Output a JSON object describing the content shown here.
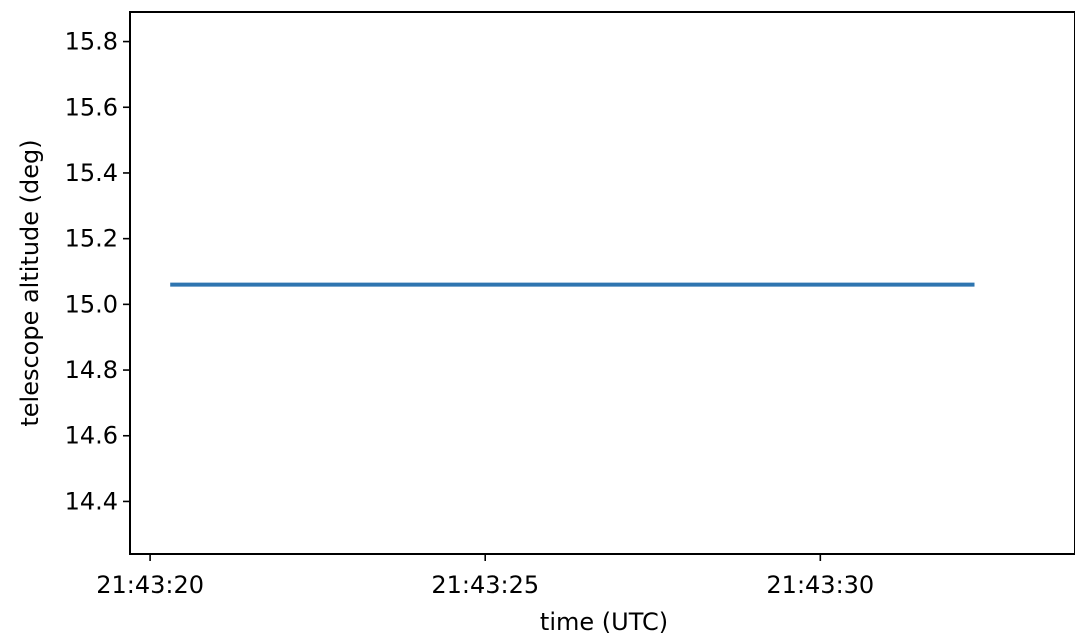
{
  "chart_data": {
    "type": "line",
    "title": "",
    "xlabel": "time (UTC)",
    "ylabel": "telescope altitude (deg)",
    "x_tick_labels": [
      "21:43:20",
      "21:43:25",
      "21:43:30"
    ],
    "x_tick_values": [
      "21:43:20",
      "21:43:25",
      "21:43:30"
    ],
    "y_tick_labels": [
      "14.4",
      "14.6",
      "14.8",
      "15.0",
      "15.2",
      "15.4",
      "15.6",
      "15.8"
    ],
    "y_tick_values": [
      14.4,
      14.6,
      14.8,
      15.0,
      15.2,
      15.4,
      15.6,
      15.8
    ],
    "xlim": [
      "21:43:19.7",
      "21:43:33.8"
    ],
    "ylim": [
      14.24,
      15.89
    ],
    "grid": false,
    "legend": "none",
    "series": [
      {
        "color": "#2e75b0",
        "x": [
          "21:43:20.3",
          "21:43:32.3"
        ],
        "y": [
          15.06,
          15.06
        ]
      }
    ]
  }
}
